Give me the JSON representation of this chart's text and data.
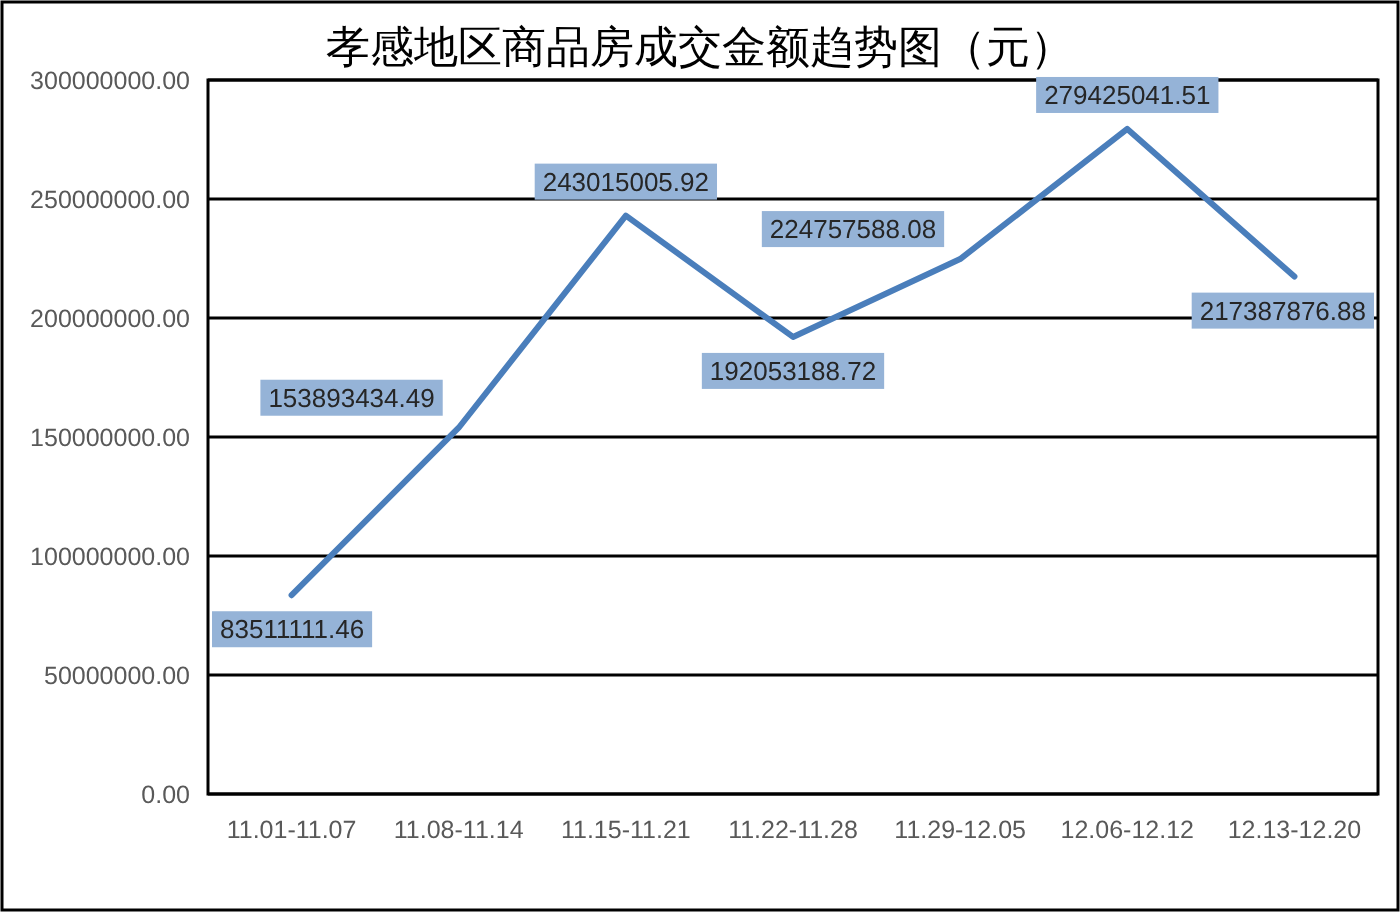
{
  "chart_data": {
    "type": "line",
    "title": "孝感地区商品房成交金额趋势图（元）",
    "categories": [
      "11.01-11.07",
      "11.08-11.14",
      "11.15-11.21",
      "11.22-11.28",
      "11.29-12.05",
      "12.06-12.12",
      "12.13-12.20"
    ],
    "series": [
      {
        "color": "#4a7ebb",
        "values": [
          83511111.46,
          153893434.49,
          243015005.92,
          192053188.72,
          224757588.08,
          279425041.51,
          217387876.88
        ]
      }
    ],
    "ylim": [
      0,
      300000000
    ],
    "yticks": [
      {
        "value": 0,
        "label": "0.00"
      },
      {
        "value": 50000000,
        "label": "50000000.00"
      },
      {
        "value": 100000000,
        "label": "100000000.00"
      },
      {
        "value": 150000000,
        "label": "150000000.00"
      },
      {
        "value": 200000000,
        "label": "200000000.00"
      },
      {
        "value": 250000000,
        "label": "250000000.00"
      },
      {
        "value": 300000000,
        "label": "300000000.00"
      }
    ],
    "grid": "y",
    "data_labels": true
  }
}
